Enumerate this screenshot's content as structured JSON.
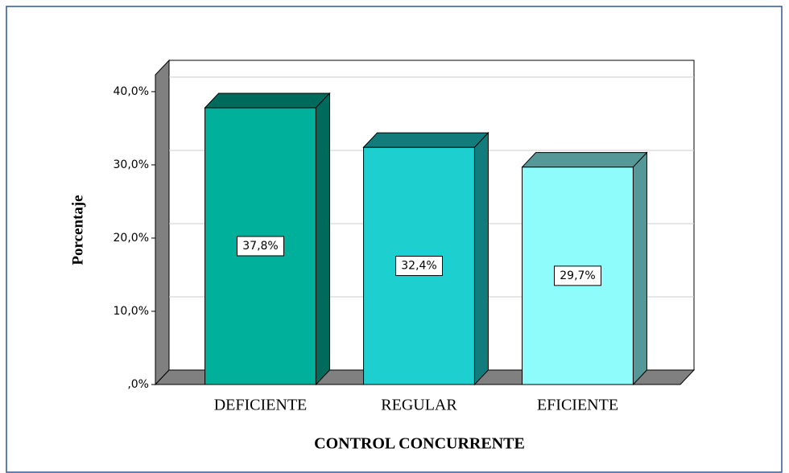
{
  "chart_data": {
    "type": "bar3d",
    "categories": [
      "DEFICIENTE",
      "REGULAR",
      "EFICIENTE"
    ],
    "values": [
      37.8,
      32.4,
      29.7
    ],
    "value_labels": [
      "37,8%",
      "32,4%",
      "29,7%"
    ],
    "colors": [
      "#00b09a",
      "#1ecfd0",
      "#8ffcfc"
    ],
    "x_label": "CONTROL CONCURRENTE",
    "y_label": "Porcentaje",
    "ylim": [
      0,
      42.3
    ],
    "yticks": [
      {
        "value": 0,
        "label": ",0%"
      },
      {
        "value": 10,
        "label": "10,0%"
      },
      {
        "value": 20,
        "label": "20,0%"
      },
      {
        "value": 30,
        "label": "30,0%"
      },
      {
        "value": 40,
        "label": "40,0%"
      }
    ],
    "grid": true
  }
}
